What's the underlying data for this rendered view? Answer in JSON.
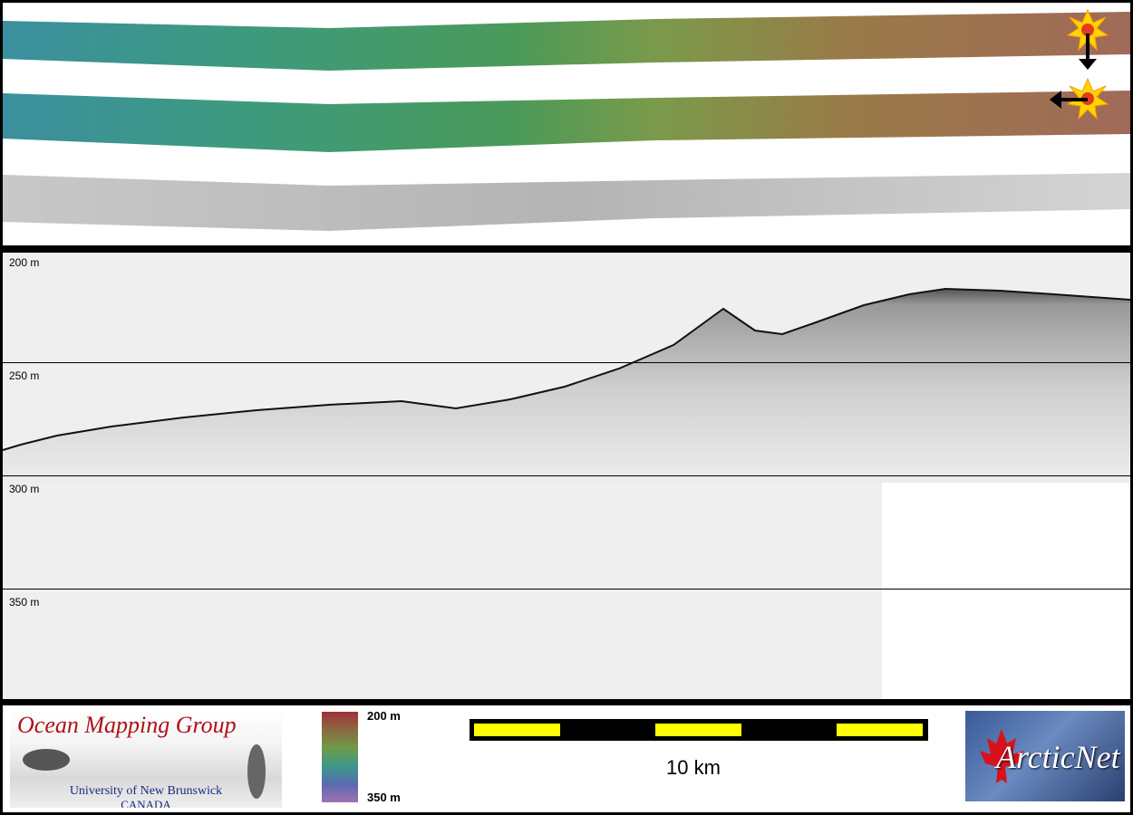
{
  "profile": {
    "depth_labels": [
      "200 m",
      "250 m",
      "300 m",
      "350 m"
    ]
  },
  "colorbar": {
    "top_label": "200 m",
    "bottom_label": "350 m"
  },
  "scalebar": {
    "label": "10 km",
    "colors": {
      "fill": "#ffff00",
      "track": "#000000"
    }
  },
  "logos": {
    "omg_title": "Ocean Mapping Group",
    "omg_university": "University of New Brunswick",
    "omg_country": "CANADA",
    "arctic_name": "ArcticNet"
  },
  "icons": {
    "vessel_start": "sun-marker-icon",
    "vessel_end": "sun-marker-icon",
    "direction_down": "arrow-down-icon",
    "direction_left": "arrow-left-icon"
  }
}
